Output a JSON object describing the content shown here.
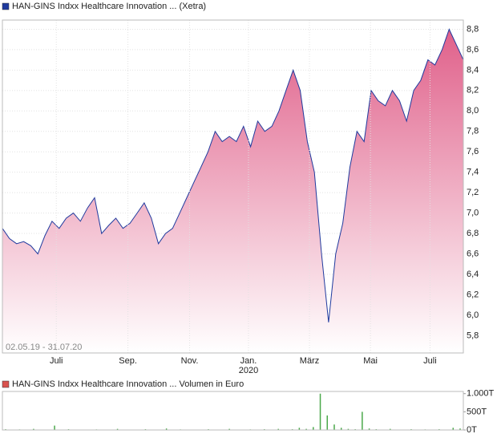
{
  "chart_data": [
    {
      "type": "area",
      "title": "HAN-GINS Indxx Healthcare Innovation ... (Xetra)",
      "period": "02.05.19 - 31.07.20",
      "color": "#1f3a9e",
      "fill_color": "#e0608a",
      "values": [
        6.85,
        6.75,
        6.7,
        6.72,
        6.68,
        6.6,
        6.78,
        6.92,
        6.85,
        6.95,
        7.0,
        6.92,
        7.05,
        7.15,
        6.8,
        6.88,
        6.95,
        6.85,
        6.9,
        7.0,
        7.1,
        6.95,
        6.7,
        6.8,
        6.85,
        7.0,
        7.15,
        7.3,
        7.45,
        7.6,
        7.8,
        7.7,
        7.75,
        7.7,
        7.85,
        7.65,
        7.9,
        7.8,
        7.85,
        8.0,
        8.2,
        8.4,
        8.2,
        7.7,
        7.4,
        6.6,
        5.93,
        6.6,
        6.9,
        7.45,
        7.8,
        7.7,
        8.2,
        8.1,
        8.05,
        8.2,
        8.1,
        7.9,
        8.2,
        8.3,
        8.5,
        8.45,
        8.6,
        8.8,
        8.65,
        8.5
      ],
      "xlim": [
        0,
        65
      ],
      "xticks": [
        {
          "value": 7.6,
          "label": "Juli"
        },
        {
          "value": 17.7,
          "label": "Sep."
        },
        {
          "value": 26.4,
          "label": "Nov."
        },
        {
          "value": 34.7,
          "label": "Jan."
        },
        {
          "value": 43.3,
          "label": "März"
        },
        {
          "value": 51.9,
          "label": "Mai"
        },
        {
          "value": 60.3,
          "label": "Juli"
        }
      ],
      "xtick_year": {
        "value": 34.7,
        "label": "2020"
      },
      "ylim": [
        5.63,
        8.89
      ],
      "yticks": [
        {
          "value": 5.8,
          "label": "5,8"
        },
        {
          "value": 6.0,
          "label": "6,0"
        },
        {
          "value": 6.2,
          "label": "6,2"
        },
        {
          "value": 6.4,
          "label": "6,4"
        },
        {
          "value": 6.6,
          "label": "6,6"
        },
        {
          "value": 6.8,
          "label": "6,8"
        },
        {
          "value": 7.0,
          "label": "7,0"
        },
        {
          "value": 7.2,
          "label": "7,2"
        },
        {
          "value": 7.4,
          "label": "7,4"
        },
        {
          "value": 7.6,
          "label": "7,6"
        },
        {
          "value": 7.8,
          "label": "7,8"
        },
        {
          "value": 8.0,
          "label": "8,0"
        },
        {
          "value": 8.2,
          "label": "8,2"
        },
        {
          "value": 8.4,
          "label": "8,4"
        },
        {
          "value": 8.6,
          "label": "8,6"
        },
        {
          "value": 8.8,
          "label": "8,8"
        }
      ],
      "grid": true
    },
    {
      "type": "bar",
      "title": "HAN-GINS Indxx Healthcare Innovation ... Volumen in Euro",
      "color": "#4aa84a",
      "legend_color": "#d9534f",
      "values": [
        20000,
        0,
        15000,
        0,
        30000,
        10000,
        0,
        120000,
        0,
        20000,
        0,
        10000,
        0,
        15000,
        0,
        0,
        30000,
        0,
        10000,
        0,
        20000,
        0,
        0,
        40000,
        0,
        15000,
        0,
        10000,
        0,
        20000,
        0,
        0,
        30000,
        0,
        10000,
        15000,
        0,
        20000,
        0,
        30000,
        0,
        20000,
        60000,
        30000,
        80000,
        1000000,
        400000,
        150000,
        60000,
        30000,
        20000,
        500000,
        40000,
        20000,
        0,
        30000,
        10000,
        0,
        20000,
        0,
        15000,
        0,
        20000,
        0,
        60000,
        40000
      ],
      "xlim": [
        0,
        65
      ],
      "ylim": [
        0,
        1060000
      ],
      "yticks": [
        {
          "value": 0,
          "label": "0T"
        },
        {
          "value": 500000,
          "label": "500T"
        },
        {
          "value": 1000000,
          "label": "1.000T"
        }
      ]
    }
  ]
}
